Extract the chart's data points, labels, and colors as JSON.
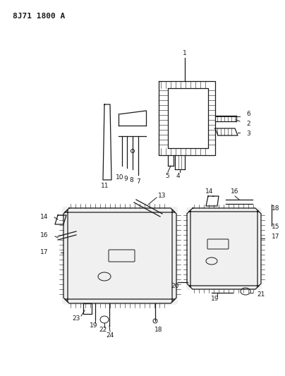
{
  "title": "8J71 1800 A",
  "bg_color": "#ffffff",
  "fig_width": 4.04,
  "fig_height": 5.33,
  "dpi": 100,
  "line_color": "#1a1a1a",
  "line_width": 0.9,
  "label_fontsize": 6.5
}
